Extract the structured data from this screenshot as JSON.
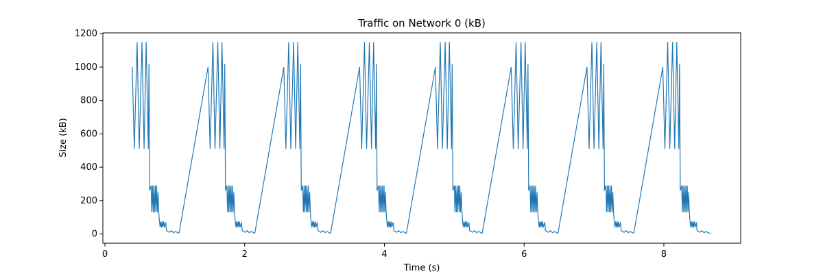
{
  "chart_data": {
    "type": "line",
    "title": "Traffic on Network 0 (kB)",
    "xlabel": "Time (s)",
    "ylabel": "Size (kB)",
    "xlim": [
      -0.03,
      9.1
    ],
    "ylim": [
      -55,
      1205
    ],
    "xticks": [
      0,
      2,
      4,
      6,
      8
    ],
    "yticks": [
      0,
      200,
      400,
      600,
      800,
      1000,
      1200
    ],
    "grid": false,
    "legend": "none",
    "line_color": "#1f77b4",
    "series": [
      {
        "period_s": 1.085,
        "cycles": 8,
        "start_x": 0.39,
        "base_cycle": [
          [
            0.39,
            1000
          ],
          [
            0.42,
            510
          ],
          [
            0.46,
            1150
          ],
          [
            0.49,
            510
          ],
          [
            0.53,
            1150
          ],
          [
            0.56,
            510
          ],
          [
            0.59,
            1150
          ],
          [
            0.62,
            510
          ],
          [
            0.63,
            1020
          ],
          [
            0.64,
            260
          ],
          [
            0.66,
            290
          ],
          [
            0.67,
            130
          ],
          [
            0.68,
            290
          ],
          [
            0.69,
            130
          ],
          [
            0.7,
            290
          ],
          [
            0.71,
            130
          ],
          [
            0.72,
            290
          ],
          [
            0.73,
            130
          ],
          [
            0.74,
            290
          ],
          [
            0.75,
            130
          ],
          [
            0.76,
            250
          ],
          [
            0.77,
            130
          ],
          [
            0.78,
            75
          ],
          [
            0.79,
            40
          ],
          [
            0.8,
            75
          ],
          [
            0.81,
            40
          ],
          [
            0.82,
            75
          ],
          [
            0.83,
            40
          ],
          [
            0.84,
            75
          ],
          [
            0.85,
            40
          ],
          [
            0.87,
            70
          ],
          [
            0.88,
            20
          ],
          [
            0.9,
            15
          ],
          [
            0.92,
            10
          ],
          [
            0.95,
            20
          ],
          [
            0.98,
            8
          ],
          [
            1.01,
            15
          ],
          [
            1.04,
            8
          ],
          [
            1.06,
            5
          ]
        ],
        "final_x": 8.67,
        "final_y": 5,
        "ramp_to": [
          1.475,
          1000
        ]
      }
    ]
  }
}
